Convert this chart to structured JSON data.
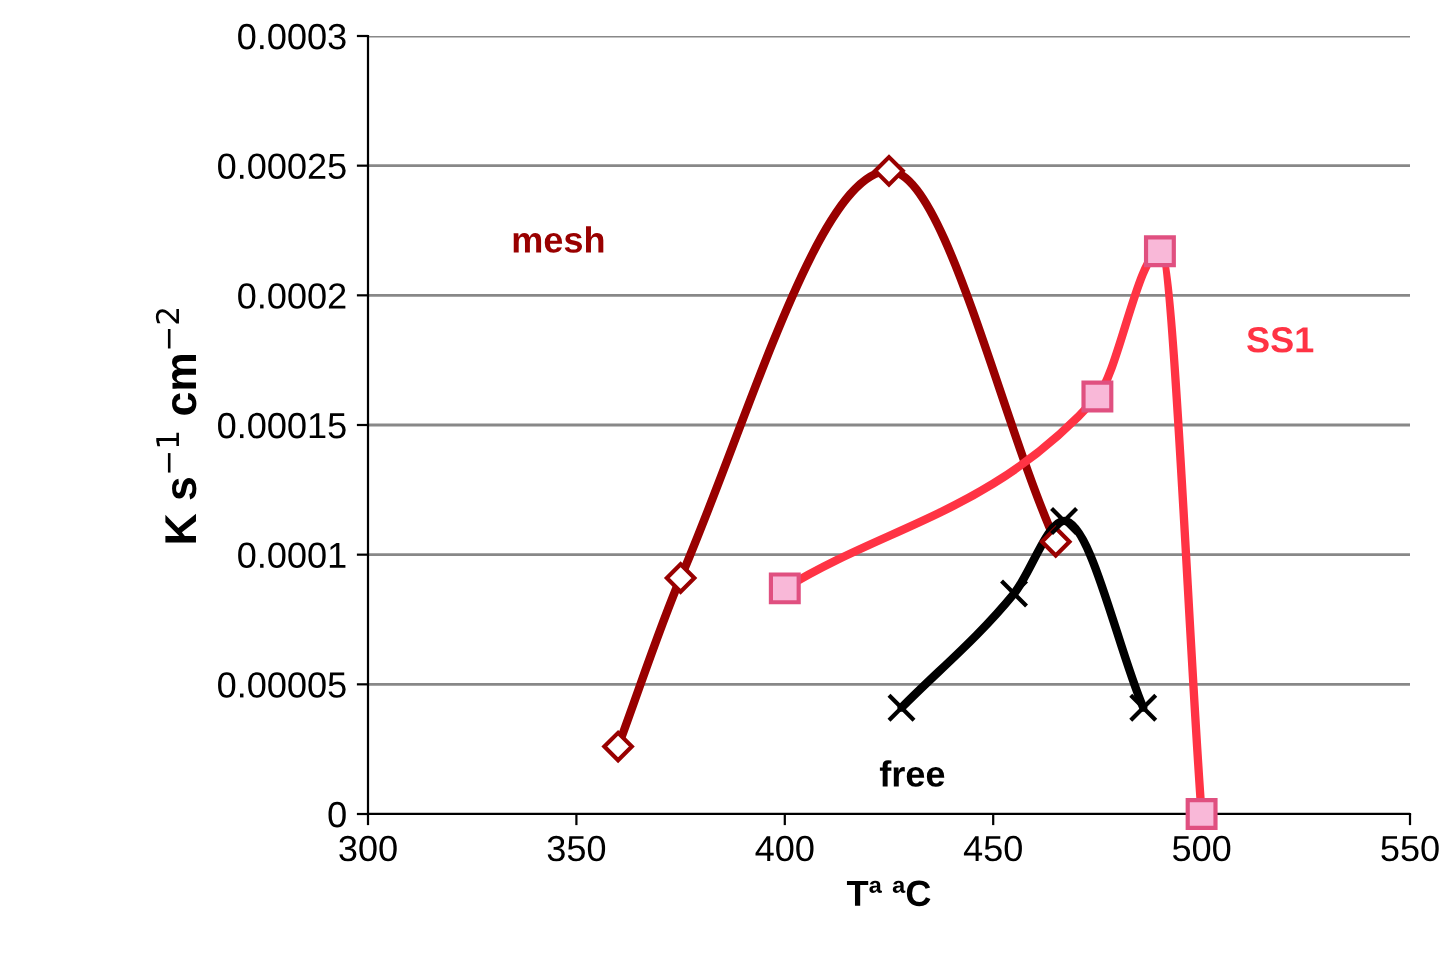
{
  "chart_data": {
    "type": "line",
    "xlabel": "Tª ªC",
    "ylabel": "K s$^{−1}$ cm$^{−2}$",
    "xlim": [
      300,
      550
    ],
    "xticks": [
      300,
      350,
      400,
      450,
      500,
      550
    ],
    "ylim": [
      0,
      0.0003
    ],
    "yticks": [
      {
        "value": 0,
        "label": "0"
      },
      {
        "value": 5e-05,
        "label": "0.00005"
      },
      {
        "value": 0.0001,
        "label": "0.0001"
      },
      {
        "value": 0.00015,
        "label": "0.00015"
      },
      {
        "value": 0.0002,
        "label": "0.0002"
      },
      {
        "value": 0.00025,
        "label": "0.00025"
      },
      {
        "value": 0.0003,
        "label": "0.0003"
      }
    ],
    "grid": "y",
    "legend": false,
    "series": [
      {
        "name": "mesh",
        "color": "#990000",
        "marker": "diamond",
        "x": [
          360,
          375,
          425,
          465
        ],
        "values": [
          2.6e-05,
          9.1e-05,
          0.000248,
          0.000105
        ]
      },
      {
        "name": "SS1",
        "color": "#ff3344",
        "marker": "square",
        "x": [
          400,
          475,
          490,
          500
        ],
        "values": [
          8.7e-05,
          0.000161,
          0.000217,
          0
        ]
      },
      {
        "name": "free",
        "color": "#000000",
        "marker": "cross",
        "x": [
          428,
          455,
          467,
          486
        ],
        "values": [
          4.1e-05,
          8.5e-05,
          0.000113,
          4.1e-05
        ]
      }
    ]
  }
}
